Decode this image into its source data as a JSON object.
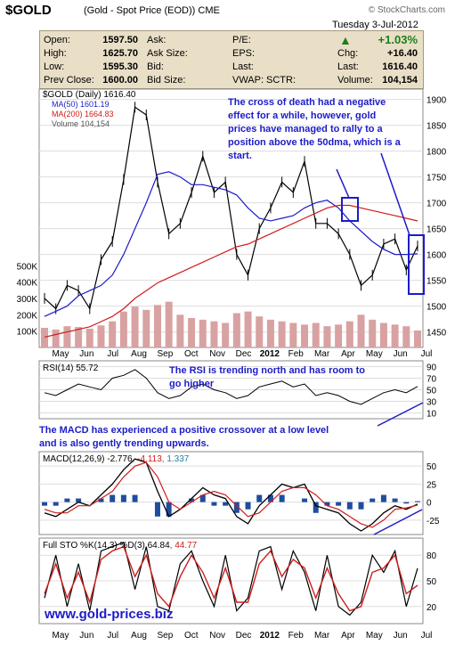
{
  "header": {
    "symbol": "$GOLD",
    "description": "(Gold - Spot Price (EOD))",
    "exchange": "CME",
    "date": "Tuesday   3-Jul-2012",
    "watermark": "© StockCharts.com"
  },
  "quote": {
    "open_label": "Open:",
    "open": "1597.50",
    "high_label": "High:",
    "high": "1625.70",
    "low_label": "Low:",
    "low": "1595.30",
    "prev_label": "Prev Close:",
    "prev": "1600.00",
    "ask_label": "Ask:",
    "asksize_label": "Ask Size:",
    "bid_label": "Bid:",
    "bidsize_label": "Bid Size:",
    "pe_label": "P/E:",
    "eps_label": "EPS:",
    "last_label_mid": "Last:",
    "vwap_label": "VWAP:",
    "sctr_label": "SCTR:",
    "pct_change": "+1.03%",
    "chg_label": "Chg:",
    "chg": "+16.40",
    "last_label": "Last:",
    "last": "1616.40",
    "volume_label": "Volume:",
    "volume": "104,154"
  },
  "colors": {
    "price_bar": "#000000",
    "ma50": "#1c1cc8",
    "ma200": "#d01c1c",
    "volume_bar": "#d8a2a2",
    "annotation": "#1c1cc8",
    "rsi_fill": "#4c8c4c",
    "macd_hist": "#1f4d9e",
    "header_bg": "#e9dfc7"
  },
  "chart_data": [
    {
      "type": "line",
      "panel": "price",
      "title": "$GOLD (Daily) 1616.40",
      "x": [
        "2011-05-02",
        "2011-05-16",
        "2011-06-01",
        "2011-06-15",
        "2011-07-01",
        "2011-07-15",
        "2011-08-01",
        "2011-08-10",
        "2011-08-22",
        "2011-09-05",
        "2011-09-22",
        "2011-09-26",
        "2011-10-10",
        "2011-10-24",
        "2011-11-08",
        "2011-11-21",
        "2011-12-05",
        "2011-12-15",
        "2011-12-29",
        "2012-01-10",
        "2012-01-25",
        "2012-02-08",
        "2012-02-28",
        "2012-03-12",
        "2012-03-26",
        "2012-04-10",
        "2012-04-24",
        "2012-05-08",
        "2012-05-16",
        "2012-05-30",
        "2012-06-05",
        "2012-06-15",
        "2012-06-28",
        "2012-07-03"
      ],
      "close": [
        1515,
        1495,
        1540,
        1530,
        1495,
        1590,
        1625,
        1745,
        1885,
        1870,
        1740,
        1640,
        1660,
        1720,
        1790,
        1720,
        1740,
        1600,
        1560,
        1650,
        1690,
        1740,
        1720,
        1780,
        1660,
        1660,
        1640,
        1600,
        1540,
        1560,
        1620,
        1630,
        1570,
        1616.4
      ],
      "series": [
        {
          "name": "MA(50) 1601.19",
          "values": [
            1480,
            1490,
            1500,
            1520,
            1530,
            1540,
            1560,
            1600,
            1650,
            1700,
            1755,
            1760,
            1750,
            1735,
            1735,
            1730,
            1725,
            1715,
            1690,
            1670,
            1665,
            1670,
            1675,
            1690,
            1700,
            1705,
            1690,
            1665,
            1645,
            1625,
            1610,
            1600,
            1600,
            1601.19
          ]
        },
        {
          "name": "MA(200) 1664.83",
          "values": [
            1440,
            1445,
            1450,
            1455,
            1460,
            1470,
            1480,
            1495,
            1515,
            1530,
            1545,
            1555,
            1565,
            1575,
            1585,
            1595,
            1605,
            1615,
            1620,
            1630,
            1640,
            1650,
            1660,
            1670,
            1680,
            1690,
            1695,
            1695,
            1690,
            1685,
            1680,
            1675,
            1670,
            1664.83
          ]
        }
      ],
      "volume_label": "Volume 104,154",
      "volume": [
        120,
        110,
        130,
        125,
        115,
        135,
        160,
        220,
        250,
        230,
        260,
        280,
        200,
        180,
        170,
        160,
        150,
        210,
        220,
        190,
        170,
        160,
        150,
        140,
        150,
        130,
        140,
        160,
        200,
        170,
        150,
        140,
        130,
        104
      ],
      "y_ticks": [
        1450,
        1500,
        1550,
        1600,
        1650,
        1700,
        1750,
        1800,
        1850,
        1900
      ],
      "ylim": [
        1420,
        1920
      ],
      "volume_ticks": [
        "100K",
        "200K",
        "300K",
        "400K",
        "500K"
      ],
      "annotation": "The cross of death had a negative effect for a while, however, gold prices have managed to rally to a position above the 50dma, which is a start."
    },
    {
      "type": "line",
      "panel": "rsi",
      "title": "RSI(14) 55.72",
      "values": [
        45,
        40,
        50,
        60,
        55,
        50,
        70,
        75,
        85,
        70,
        45,
        35,
        40,
        55,
        60,
        50,
        45,
        35,
        40,
        55,
        60,
        65,
        55,
        60,
        40,
        45,
        40,
        30,
        25,
        35,
        45,
        50,
        45,
        55.72
      ],
      "y_ticks": [
        10,
        30,
        50,
        70,
        90
      ],
      "ylim": [
        0,
        100
      ],
      "annotation": "The RSI is trending north and has room to go higher"
    },
    {
      "type": "line",
      "panel": "macd",
      "title": "MACD(12,26,9)",
      "title_values": [
        "-2.776",
        "-4.113",
        "1.337"
      ],
      "macd": [
        -15,
        -20,
        -10,
        0,
        -5,
        10,
        25,
        45,
        60,
        55,
        15,
        -20,
        -10,
        5,
        20,
        10,
        5,
        -20,
        -30,
        -5,
        10,
        25,
        20,
        25,
        -5,
        -10,
        -15,
        -30,
        -40,
        -30,
        -15,
        -5,
        -10,
        -2.776
      ],
      "signal": [
        -10,
        -15,
        -15,
        -5,
        -5,
        5,
        15,
        35,
        50,
        55,
        35,
        0,
        -10,
        0,
        10,
        15,
        10,
        -5,
        -20,
        -15,
        0,
        15,
        20,
        20,
        10,
        -5,
        -10,
        -20,
        -30,
        -35,
        -25,
        -10,
        -8,
        -4.113
      ],
      "histogram": [
        -5,
        -5,
        5,
        5,
        0,
        5,
        10,
        10,
        10,
        0,
        -20,
        -20,
        0,
        5,
        10,
        -5,
        -5,
        -15,
        -10,
        10,
        10,
        10,
        0,
        5,
        -15,
        -5,
        -5,
        -10,
        -10,
        5,
        10,
        5,
        -2,
        1.337
      ],
      "y_ticks": [
        -25,
        0,
        25,
        50
      ],
      "ylim": [
        -45,
        70
      ],
      "annotation": "The MACD has experienced a positive crossover at a low level and is also gently trending upwards."
    },
    {
      "type": "line",
      "panel": "stochastic",
      "title": "Full STO %K(14,3) %D(3)",
      "title_values": [
        "64.84",
        "44.77"
      ],
      "k": [
        30,
        80,
        20,
        70,
        15,
        85,
        90,
        95,
        40,
        90,
        20,
        15,
        70,
        85,
        50,
        20,
        80,
        15,
        30,
        85,
        90,
        40,
        85,
        60,
        15,
        80,
        20,
        10,
        25,
        80,
        60,
        85,
        20,
        64.84
      ],
      "d": [
        35,
        70,
        30,
        60,
        25,
        75,
        85,
        90,
        55,
        80,
        35,
        20,
        55,
        80,
        60,
        30,
        65,
        25,
        25,
        70,
        85,
        55,
        75,
        65,
        30,
        65,
        35,
        15,
        20,
        60,
        65,
        80,
        35,
        44.77
      ],
      "y_ticks": [
        20,
        50,
        80
      ],
      "ylim": [
        0,
        100
      ],
      "footer_text": "www.gold-prices.biz"
    }
  ],
  "x_axis_labels": [
    "May",
    "Jun",
    "Jul",
    "Aug",
    "Sep",
    "Oct",
    "Nov",
    "Dec",
    "2012",
    "Feb",
    "Mar",
    "Apr",
    "May",
    "Jun",
    "Jul"
  ]
}
